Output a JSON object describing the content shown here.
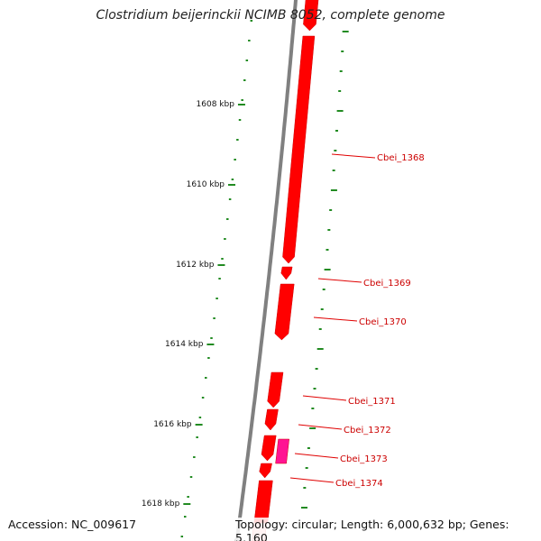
{
  "title": "Clostridium beijerinckii NCIMB 8052, complete genome",
  "footer": {
    "accession": "Accession: NC_009617",
    "summary": "Topology: circular; Length: 6,000,632 bp; Genes: 5,160"
  },
  "colors": {
    "gene": "#ff0000",
    "gene_alt": "#ff1493",
    "gene_faded": "#ffb0b0",
    "tick": "#228b22",
    "backbone": "#808080",
    "label_text": "#cc0000",
    "leader": "#e00000"
  },
  "scale_ticks": [
    {
      "label": "1608 kbp"
    },
    {
      "label": "1610 kbp"
    },
    {
      "label": "1612 kbp"
    },
    {
      "label": "1614 kbp"
    },
    {
      "label": "1616 kbp"
    },
    {
      "label": "1618 kbp"
    }
  ],
  "gene_labels": [
    {
      "name": "Cbei_1368"
    },
    {
      "name": "Cbei_1369"
    },
    {
      "name": "Cbei_1370"
    },
    {
      "name": "Cbei_1371"
    },
    {
      "name": "Cbei_1372"
    },
    {
      "name": "Cbei_1373"
    },
    {
      "name": "Cbei_1374"
    }
  ]
}
